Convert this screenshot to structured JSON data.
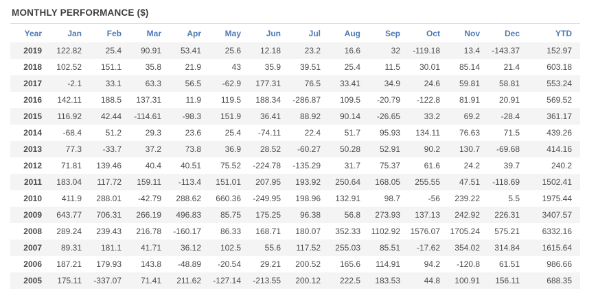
{
  "title": "MONTHLY PERFORMANCE ($)",
  "colors": {
    "header_text": "#4d79b3",
    "negative_value": "#d14d48",
    "positive_value": "#4b4b4b",
    "stripe_background": "#f4f4f4",
    "title_text": "#3e3e40",
    "divider": "#d9d9d9"
  },
  "table": {
    "columns": [
      "Year",
      "Jan",
      "Feb",
      "Mar",
      "Apr",
      "May",
      "Jun",
      "Jul",
      "Aug",
      "Sep",
      "Oct",
      "Nov",
      "Dec",
      "YTD"
    ],
    "rows": [
      {
        "year": "2019",
        "values": [
          "122.82",
          "25.4",
          "90.91",
          "53.41",
          "25.6",
          "12.18",
          "23.2",
          "16.6",
          "32",
          "-119.18",
          "13.4",
          "-143.37",
          "152.97"
        ]
      },
      {
        "year": "2018",
        "values": [
          "102.52",
          "151.1",
          "35.8",
          "21.9",
          "43",
          "35.9",
          "39.51",
          "25.4",
          "11.5",
          "30.01",
          "85.14",
          "21.4",
          "603.18"
        ]
      },
      {
        "year": "2017",
        "values": [
          "-2.1",
          "33.1",
          "63.3",
          "56.5",
          "-62.9",
          "177.31",
          "76.5",
          "33.41",
          "34.9",
          "24.6",
          "59.81",
          "58.81",
          "553.24"
        ]
      },
      {
        "year": "2016",
        "values": [
          "142.11",
          "188.5",
          "137.31",
          "11.9",
          "119.5",
          "188.34",
          "-286.87",
          "109.5",
          "-20.79",
          "-122.8",
          "81.91",
          "20.91",
          "569.52"
        ]
      },
      {
        "year": "2015",
        "values": [
          "116.92",
          "42.44",
          "-114.61",
          "-98.3",
          "151.9",
          "36.41",
          "88.92",
          "90.14",
          "-26.65",
          "33.2",
          "69.2",
          "-28.4",
          "361.17"
        ]
      },
      {
        "year": "2014",
        "values": [
          "-68.4",
          "51.2",
          "29.3",
          "23.6",
          "25.4",
          "-74.11",
          "22.4",
          "51.7",
          "95.93",
          "134.11",
          "76.63",
          "71.5",
          "439.26"
        ]
      },
      {
        "year": "2013",
        "values": [
          "77.3",
          "-33.7",
          "37.2",
          "73.8",
          "36.9",
          "28.52",
          "-60.27",
          "50.28",
          "52.91",
          "90.2",
          "130.7",
          "-69.68",
          "414.16"
        ]
      },
      {
        "year": "2012",
        "values": [
          "71.81",
          "139.46",
          "40.4",
          "40.51",
          "75.52",
          "-224.78",
          "-135.29",
          "31.7",
          "75.37",
          "61.6",
          "24.2",
          "39.7",
          "240.2"
        ]
      },
      {
        "year": "2011",
        "values": [
          "183.04",
          "117.72",
          "159.11",
          "-113.4",
          "151.01",
          "207.95",
          "193.92",
          "250.64",
          "168.05",
          "255.55",
          "47.51",
          "-118.69",
          "1502.41"
        ]
      },
      {
        "year": "2010",
        "values": [
          "411.9",
          "288.01",
          "-42.79",
          "288.62",
          "660.36",
          "-249.95",
          "198.96",
          "132.91",
          "98.7",
          "-56",
          "239.22",
          "5.5",
          "1975.44"
        ]
      },
      {
        "year": "2009",
        "values": [
          "643.77",
          "706.31",
          "266.19",
          "496.83",
          "85.75",
          "175.25",
          "96.38",
          "56.8",
          "273.93",
          "137.13",
          "242.92",
          "226.31",
          "3407.57"
        ]
      },
      {
        "year": "2008",
        "values": [
          "289.24",
          "239.43",
          "216.78",
          "-160.17",
          "86.33",
          "168.71",
          "180.07",
          "352.33",
          "1102.92",
          "1576.07",
          "1705.24",
          "575.21",
          "6332.16"
        ]
      },
      {
        "year": "2007",
        "values": [
          "89.31",
          "181.1",
          "41.71",
          "36.12",
          "102.5",
          "55.6",
          "117.52",
          "255.03",
          "85.51",
          "-17.62",
          "354.02",
          "314.84",
          "1615.64"
        ]
      },
      {
        "year": "2006",
        "values": [
          "187.21",
          "179.93",
          "143.8",
          "-48.89",
          "-20.54",
          "29.21",
          "200.52",
          "165.6",
          "114.91",
          "94.2",
          "-120.8",
          "61.51",
          "986.66"
        ]
      },
      {
        "year": "2005",
        "values": [
          "175.11",
          "-337.07",
          "71.41",
          "211.62",
          "-127.14",
          "-213.55",
          "200.12",
          "222.5",
          "183.53",
          "44.8",
          "100.91",
          "156.11",
          "688.35"
        ]
      }
    ]
  }
}
